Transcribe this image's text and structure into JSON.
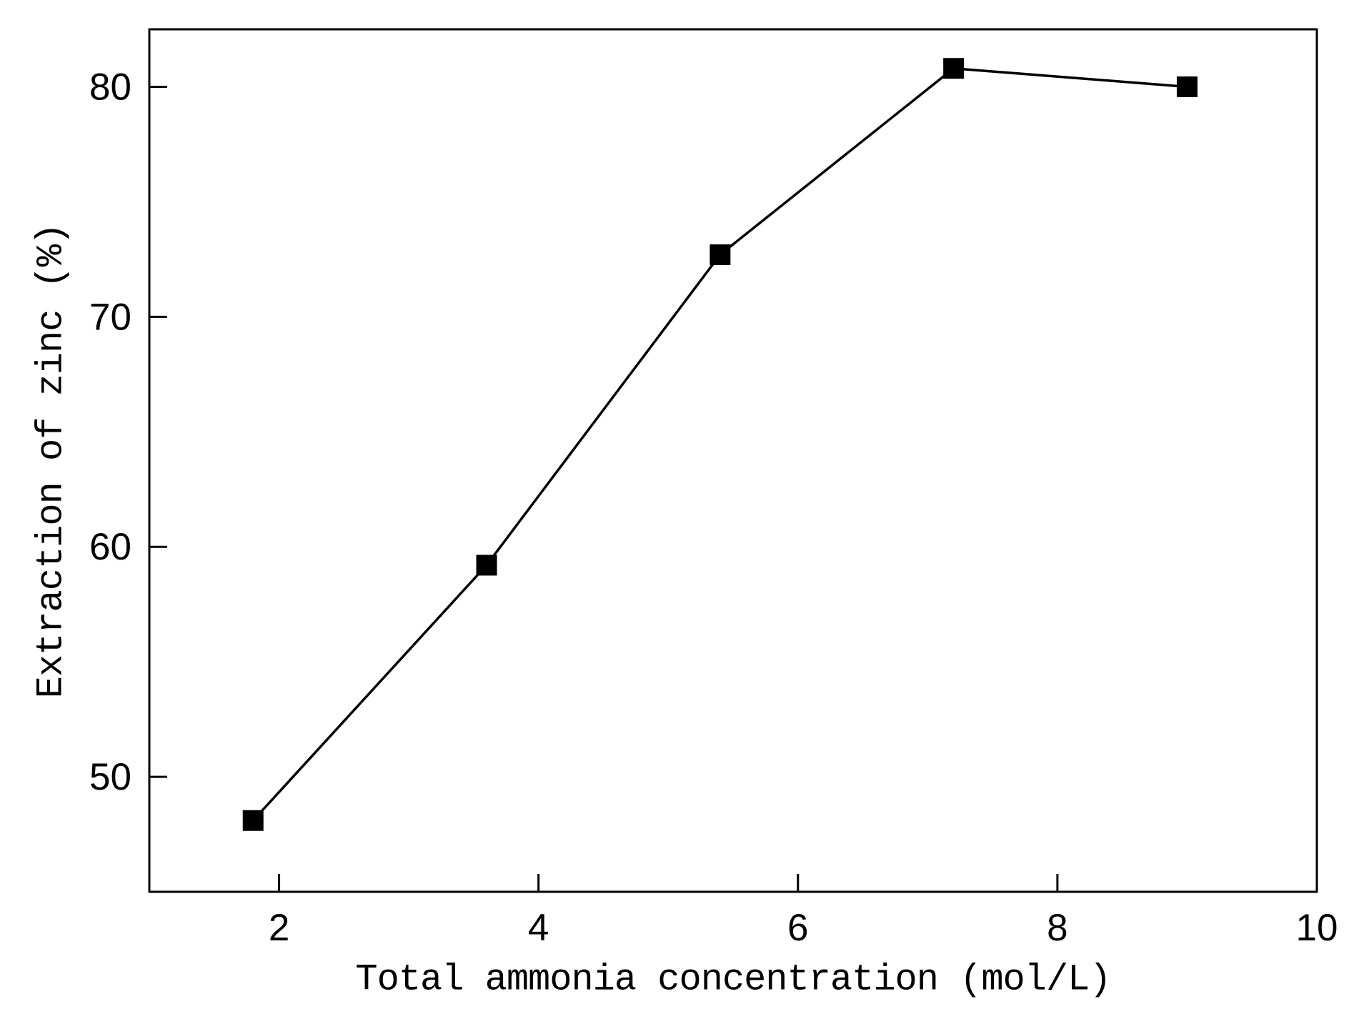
{
  "chart_data": {
    "type": "line",
    "title": "",
    "xlabel": "Total ammonia concentration (mol/L)",
    "ylabel": "Extraction of zinc (%)",
    "series": [
      {
        "name": "Extraction of zinc",
        "x": [
          1.8,
          3.6,
          5.4,
          7.2,
          9.0
        ],
        "y": [
          48.1,
          59.2,
          72.7,
          80.8,
          80.0
        ]
      }
    ],
    "xlim": [
      1,
      10
    ],
    "ylim": [
      45,
      82.5
    ],
    "xticks": [
      2,
      4,
      6,
      8,
      10
    ],
    "yticks": [
      50,
      60,
      70,
      80
    ],
    "grid": false,
    "legend_position": "none",
    "marker": "filled-square",
    "marker_color": "#000000",
    "line_color": "#000000",
    "axis_color": "#000000",
    "background_color": "#ffffff",
    "tick_label_fontsize_px": 53
  }
}
